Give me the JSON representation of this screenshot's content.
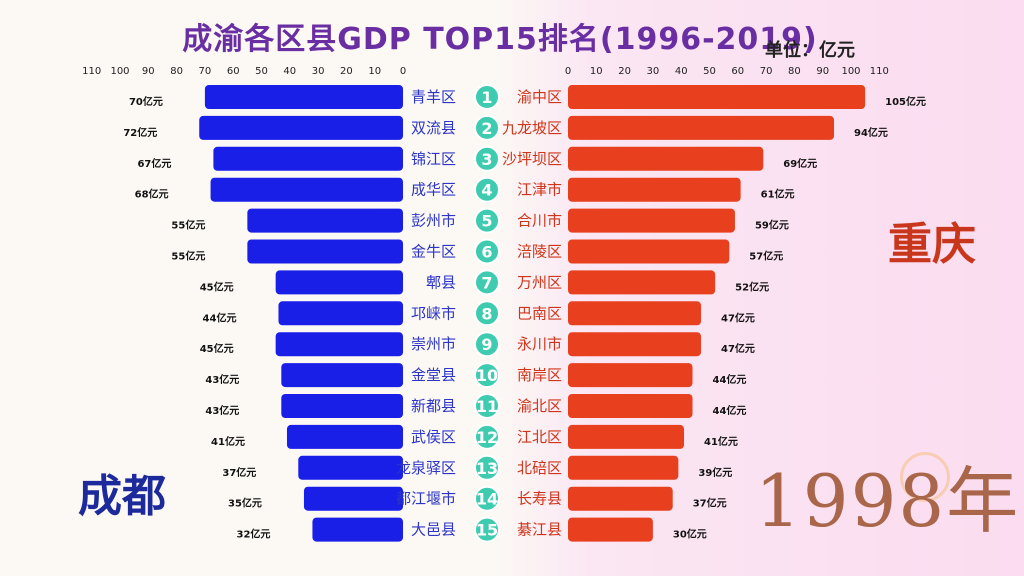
{
  "title": "成渝各区县GDP TOP15排名(1996-2019)",
  "unit_label": "单位：亿元",
  "year_label": "1998年",
  "colors": {
    "chengdu": "#1a1fe8",
    "chongqing": "#e8401e",
    "rank_circle": "#3ecbb0",
    "left_text": "#2c35c7",
    "right_text": "#d0341a"
  },
  "chart_data": [
    {
      "type": "bar",
      "name": "成都",
      "orientation": "horizontal-leftward",
      "value_suffix": "亿元",
      "xlim": [
        0,
        110
      ],
      "axis_ticks": [
        110,
        100,
        90,
        80,
        70,
        60,
        50,
        40,
        30,
        20,
        10,
        0
      ],
      "ranks": [
        1,
        2,
        3,
        4,
        5,
        6,
        7,
        8,
        9,
        10,
        11,
        12,
        13,
        14,
        15
      ],
      "categories": [
        "青羊区",
        "双流县",
        "锦江区",
        "成华区",
        "彭州市",
        "金牛区",
        "郫县",
        "邛崃市",
        "崇州市",
        "金堂县",
        "新都县",
        "武侯区",
        "龙泉驿区",
        "都江堰市",
        "大邑县"
      ],
      "values": [
        70,
        72,
        67,
        68,
        55,
        55,
        45,
        44,
        45,
        43,
        43,
        41,
        37,
        35,
        32
      ],
      "value_labels": [
        "70亿元",
        "72亿元",
        "67亿元",
        "68亿元",
        "55亿元",
        "55亿元",
        "45亿元",
        "44亿元",
        "45亿元",
        "43亿元",
        "43亿元",
        "41亿元",
        "37亿元",
        "35亿元",
        "32亿元"
      ]
    },
    {
      "type": "bar",
      "name": "重庆",
      "orientation": "horizontal-rightward",
      "value_suffix": "亿元",
      "xlim": [
        0,
        110
      ],
      "axis_ticks": [
        0,
        10,
        20,
        30,
        40,
        50,
        60,
        70,
        80,
        90,
        100,
        110
      ],
      "ranks": [
        1,
        2,
        3,
        4,
        5,
        6,
        7,
        8,
        9,
        10,
        11,
        12,
        13,
        14,
        15
      ],
      "categories": [
        "渝中区",
        "九龙坡区",
        "沙坪坝区",
        "江津市",
        "合川市",
        "涪陵区",
        "万州区",
        "巴南区",
        "永川市",
        "南岸区",
        "渝北区",
        "江北区",
        "北碚区",
        "长寿县",
        "綦江县"
      ],
      "values": [
        105,
        94,
        69,
        61,
        59,
        57,
        52,
        47,
        47,
        44,
        44,
        41,
        39,
        37,
        30
      ],
      "value_labels": [
        "105亿元",
        "94亿元",
        "69亿元",
        "61亿元",
        "59亿元",
        "57亿元",
        "52亿元",
        "47亿元",
        "47亿元",
        "44亿元",
        "44亿元",
        "41亿元",
        "39亿元",
        "37亿元",
        "30亿元"
      ]
    }
  ]
}
